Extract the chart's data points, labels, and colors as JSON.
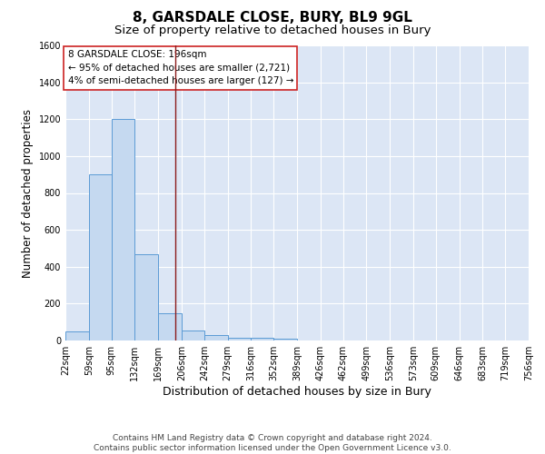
{
  "title": "8, GARSDALE CLOSE, BURY, BL9 9GL",
  "subtitle": "Size of property relative to detached houses in Bury",
  "xlabel": "Distribution of detached houses by size in Bury",
  "ylabel": "Number of detached properties",
  "footer_line1": "Contains HM Land Registry data © Crown copyright and database right 2024.",
  "footer_line2": "Contains public sector information licensed under the Open Government Licence v3.0.",
  "annotation_line1": "8 GARSDALE CLOSE: 196sqm",
  "annotation_line2": "← 95% of detached houses are smaller (2,721)",
  "annotation_line3": "4% of semi-detached houses are larger (127) →",
  "bar_edges": [
    22,
    59,
    95,
    132,
    169,
    206,
    242,
    279,
    316,
    352,
    389,
    426,
    462,
    499,
    536,
    573,
    609,
    646,
    683,
    719,
    756
  ],
  "bar_heights": [
    50,
    900,
    1200,
    470,
    150,
    55,
    30,
    15,
    15,
    10,
    0,
    0,
    0,
    0,
    0,
    0,
    0,
    0,
    0,
    0
  ],
  "bar_color": "#c5d9f0",
  "bar_edge_color": "#5b9bd5",
  "vline_x": 196,
  "vline_color": "#8b1a1a",
  "annotation_box_facecolor": "#ffffff",
  "annotation_box_edgecolor": "#cc2222",
  "plot_bg_color": "#dce6f5",
  "fig_bg_color": "#ffffff",
  "grid_color": "#ffffff",
  "ylim": [
    0,
    1600
  ],
  "yticks": [
    0,
    200,
    400,
    600,
    800,
    1000,
    1200,
    1400,
    1600
  ],
  "title_fontsize": 11,
  "subtitle_fontsize": 9.5,
  "xlabel_fontsize": 9,
  "ylabel_fontsize": 8.5,
  "tick_fontsize": 7,
  "annotation_fontsize": 7.5,
  "footer_fontsize": 6.5
}
